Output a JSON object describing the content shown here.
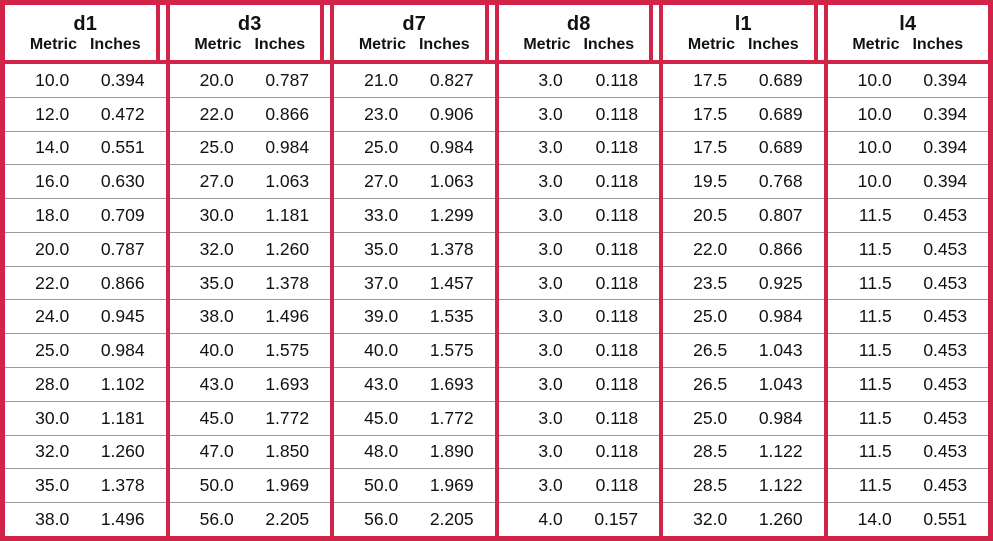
{
  "colors": {
    "border_red": "#d22349",
    "grid_gray": "#9b9b9b",
    "text": "#121212",
    "background": "#ffffff"
  },
  "subheaders": {
    "metric": "Metric",
    "inches": "Inches"
  },
  "table": {
    "column_groups": [
      {
        "label": "d1",
        "rows": [
          {
            "metric": "10.0",
            "inches": "0.394"
          },
          {
            "metric": "12.0",
            "inches": "0.472"
          },
          {
            "metric": "14.0",
            "inches": "0.551"
          },
          {
            "metric": "16.0",
            "inches": "0.630"
          },
          {
            "metric": "18.0",
            "inches": "0.709"
          },
          {
            "metric": "20.0",
            "inches": "0.787"
          },
          {
            "metric": "22.0",
            "inches": "0.866"
          },
          {
            "metric": "24.0",
            "inches": "0.945"
          },
          {
            "metric": "25.0",
            "inches": "0.984"
          },
          {
            "metric": "28.0",
            "inches": "1.102"
          },
          {
            "metric": "30.0",
            "inches": "1.181"
          },
          {
            "metric": "32.0",
            "inches": "1.260"
          },
          {
            "metric": "35.0",
            "inches": "1.378"
          },
          {
            "metric": "38.0",
            "inches": "1.496"
          }
        ]
      },
      {
        "label": "d3",
        "rows": [
          {
            "metric": "20.0",
            "inches": "0.787"
          },
          {
            "metric": "22.0",
            "inches": "0.866"
          },
          {
            "metric": "25.0",
            "inches": "0.984"
          },
          {
            "metric": "27.0",
            "inches": "1.063"
          },
          {
            "metric": "30.0",
            "inches": "1.181"
          },
          {
            "metric": "32.0",
            "inches": "1.260"
          },
          {
            "metric": "35.0",
            "inches": "1.378"
          },
          {
            "metric": "38.0",
            "inches": "1.496"
          },
          {
            "metric": "40.0",
            "inches": "1.575"
          },
          {
            "metric": "43.0",
            "inches": "1.693"
          },
          {
            "metric": "45.0",
            "inches": "1.772"
          },
          {
            "metric": "47.0",
            "inches": "1.850"
          },
          {
            "metric": "50.0",
            "inches": "1.969"
          },
          {
            "metric": "56.0",
            "inches": "2.205"
          }
        ]
      },
      {
        "label": "d7",
        "rows": [
          {
            "metric": "21.0",
            "inches": "0.827"
          },
          {
            "metric": "23.0",
            "inches": "0.906"
          },
          {
            "metric": "25.0",
            "inches": "0.984"
          },
          {
            "metric": "27.0",
            "inches": "1.063"
          },
          {
            "metric": "33.0",
            "inches": "1.299"
          },
          {
            "metric": "35.0",
            "inches": "1.378"
          },
          {
            "metric": "37.0",
            "inches": "1.457"
          },
          {
            "metric": "39.0",
            "inches": "1.535"
          },
          {
            "metric": "40.0",
            "inches": "1.575"
          },
          {
            "metric": "43.0",
            "inches": "1.693"
          },
          {
            "metric": "45.0",
            "inches": "1.772"
          },
          {
            "metric": "48.0",
            "inches": "1.890"
          },
          {
            "metric": "50.0",
            "inches": "1.969"
          },
          {
            "metric": "56.0",
            "inches": "2.205"
          }
        ]
      },
      {
        "label": "d8",
        "rows": [
          {
            "metric": "3.0",
            "inches": "0.118"
          },
          {
            "metric": "3.0",
            "inches": "0.118"
          },
          {
            "metric": "3.0",
            "inches": "0.118"
          },
          {
            "metric": "3.0",
            "inches": "0.118"
          },
          {
            "metric": "3.0",
            "inches": "0.118"
          },
          {
            "metric": "3.0",
            "inches": "0.118"
          },
          {
            "metric": "3.0",
            "inches": "0.118"
          },
          {
            "metric": "3.0",
            "inches": "0.118"
          },
          {
            "metric": "3.0",
            "inches": "0.118"
          },
          {
            "metric": "3.0",
            "inches": "0.118"
          },
          {
            "metric": "3.0",
            "inches": "0.118"
          },
          {
            "metric": "3.0",
            "inches": "0.118"
          },
          {
            "metric": "3.0",
            "inches": "0.118"
          },
          {
            "metric": "4.0",
            "inches": "0.157"
          }
        ]
      },
      {
        "label": "l1",
        "rows": [
          {
            "metric": "17.5",
            "inches": "0.689"
          },
          {
            "metric": "17.5",
            "inches": "0.689"
          },
          {
            "metric": "17.5",
            "inches": "0.689"
          },
          {
            "metric": "19.5",
            "inches": "0.768"
          },
          {
            "metric": "20.5",
            "inches": "0.807"
          },
          {
            "metric": "22.0",
            "inches": "0.866"
          },
          {
            "metric": "23.5",
            "inches": "0.925"
          },
          {
            "metric": "25.0",
            "inches": "0.984"
          },
          {
            "metric": "26.5",
            "inches": "1.043"
          },
          {
            "metric": "26.5",
            "inches": "1.043"
          },
          {
            "metric": "25.0",
            "inches": "0.984"
          },
          {
            "metric": "28.5",
            "inches": "1.122"
          },
          {
            "metric": "28.5",
            "inches": "1.122"
          },
          {
            "metric": "32.0",
            "inches": "1.260"
          }
        ]
      },
      {
        "label": "l4",
        "rows": [
          {
            "metric": "10.0",
            "inches": "0.394"
          },
          {
            "metric": "10.0",
            "inches": "0.394"
          },
          {
            "metric": "10.0",
            "inches": "0.394"
          },
          {
            "metric": "10.0",
            "inches": "0.394"
          },
          {
            "metric": "11.5",
            "inches": "0.453"
          },
          {
            "metric": "11.5",
            "inches": "0.453"
          },
          {
            "metric": "11.5",
            "inches": "0.453"
          },
          {
            "metric": "11.5",
            "inches": "0.453"
          },
          {
            "metric": "11.5",
            "inches": "0.453"
          },
          {
            "metric": "11.5",
            "inches": "0.453"
          },
          {
            "metric": "11.5",
            "inches": "0.453"
          },
          {
            "metric": "11.5",
            "inches": "0.453"
          },
          {
            "metric": "11.5",
            "inches": "0.453"
          },
          {
            "metric": "14.0",
            "inches": "0.551"
          }
        ]
      }
    ]
  }
}
